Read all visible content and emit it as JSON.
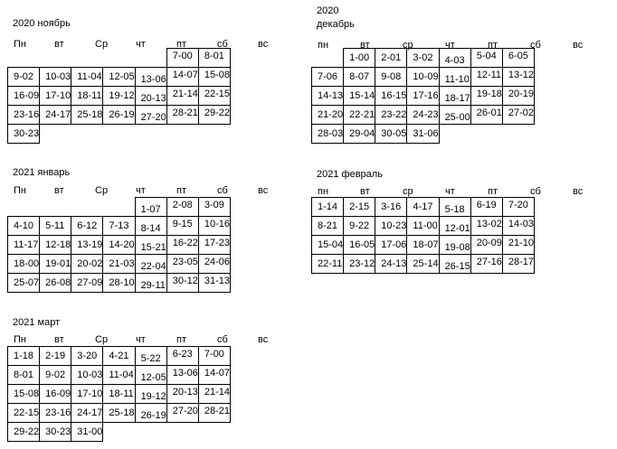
{
  "document": {
    "background": "#ffffff",
    "text_color": "#000000",
    "table_border_color": "#000000"
  },
  "months": [
    {
      "id": "november-2020",
      "title": "2020 ноябрь",
      "headers": [
        "Пн",
        "вт",
        "Ср",
        "чт",
        "пт",
        "сб",
        "вс"
      ],
      "rows": [
        [
          "",
          "",
          "",
          "",
          "",
          "7-00",
          "8-01"
        ],
        [
          "9-02",
          "10-03",
          "11-04",
          "12-05",
          "13-06",
          "14-07",
          "15-08"
        ],
        [
          "16-09",
          "17-10",
          "18-11",
          "19-12",
          "20-13",
          "21-14",
          "22-15"
        ],
        [
          "23-16",
          "24-17",
          "25-18",
          "26-19",
          "27-20",
          "28-21",
          "29-22"
        ],
        [
          "30-23",
          "",
          "",
          "",
          "",
          "",
          ""
        ]
      ]
    },
    {
      "id": "december-2020",
      "title_line1": "2020",
      "title_line2": "декабрь",
      "headers": [
        "пн",
        "вт",
        "ср",
        "чт",
        "пт",
        "сб",
        "вс"
      ],
      "rows": [
        [
          "",
          "1-00",
          "2-01",
          "3-02",
          "4-03",
          "5-04",
          "6-05"
        ],
        [
          "7-06",
          "8-07",
          "9-08",
          "10-09",
          "11-10",
          "12-11",
          "13-12"
        ],
        [
          "14-13",
          "15-14",
          "16-15",
          "17-16",
          "18-17",
          "19-18",
          "20-19"
        ],
        [
          "21-20",
          "22-21",
          "23-22",
          "24-23",
          "25-00",
          "26-01",
          "27-02"
        ],
        [
          "28-03",
          "29-04",
          "30-05",
          "31-06",
          "",
          "",
          ""
        ]
      ]
    },
    {
      "id": "january-2021",
      "title": "2021 январь",
      "headers": [
        "Пн",
        "вт",
        "Ср",
        "чт",
        "пт",
        "сб",
        "вс"
      ],
      "rows": [
        [
          "",
          "",
          "",
          "",
          "1-07",
          "2-08",
          "3-09"
        ],
        [
          "4-10",
          "5-11",
          "6-12",
          "7-13",
          "8-14",
          "9-15",
          "10-16"
        ],
        [
          "11-17",
          "12-18",
          "13-19",
          "14-20",
          "15-21",
          "16-22",
          "17-23"
        ],
        [
          "18-00",
          "19-01",
          "20-02",
          "21-03",
          "22-04",
          "23-05",
          "24-06"
        ],
        [
          "25-07",
          "26-08",
          "27-09",
          "28-10",
          "29-11",
          "30-12",
          "31-13"
        ]
      ]
    },
    {
      "id": "february-2021",
      "title": "2021 февраль",
      "headers": [
        "пн",
        "вт",
        "ср",
        "чт",
        "пт",
        "сб",
        "вс"
      ],
      "rows": [
        [
          "1-14",
          "2-15",
          "3-16",
          "4-17",
          "5-18",
          "6-19",
          "7-20"
        ],
        [
          "8-21",
          "9-22",
          "10-23",
          "11-00",
          "12-01",
          "13-02",
          "14-03"
        ],
        [
          "15-04",
          "16-05",
          "17-06",
          "18-07",
          "19-08",
          "20-09",
          "21-10"
        ],
        [
          "22-11",
          "23-12",
          "24-13",
          "25-14",
          "26-15",
          "27-16",
          "28-17"
        ]
      ]
    },
    {
      "id": "march-2021",
      "title": "2021 март",
      "headers": [
        "Пн",
        "вт",
        "Ср",
        "чт",
        "пт",
        "сб",
        "вс"
      ],
      "rows": [
        [
          "1-18",
          "2-19",
          "3-20",
          "4-21",
          "5-22",
          "6-23",
          "7-00"
        ],
        [
          "8-01",
          "9-02",
          "10-03",
          "11-04",
          "12-05",
          "13-06",
          "14-07"
        ],
        [
          "15-08",
          "16-09",
          "17-10",
          "18-11",
          "19-12",
          "20-13",
          "21-14"
        ],
        [
          "22-15",
          "23-16",
          "24-17",
          "25-18",
          "26-19",
          "27-20",
          "28-21"
        ],
        [
          "29-22",
          "30-23",
          "31-00",
          "",
          "",
          "",
          ""
        ]
      ]
    }
  ]
}
